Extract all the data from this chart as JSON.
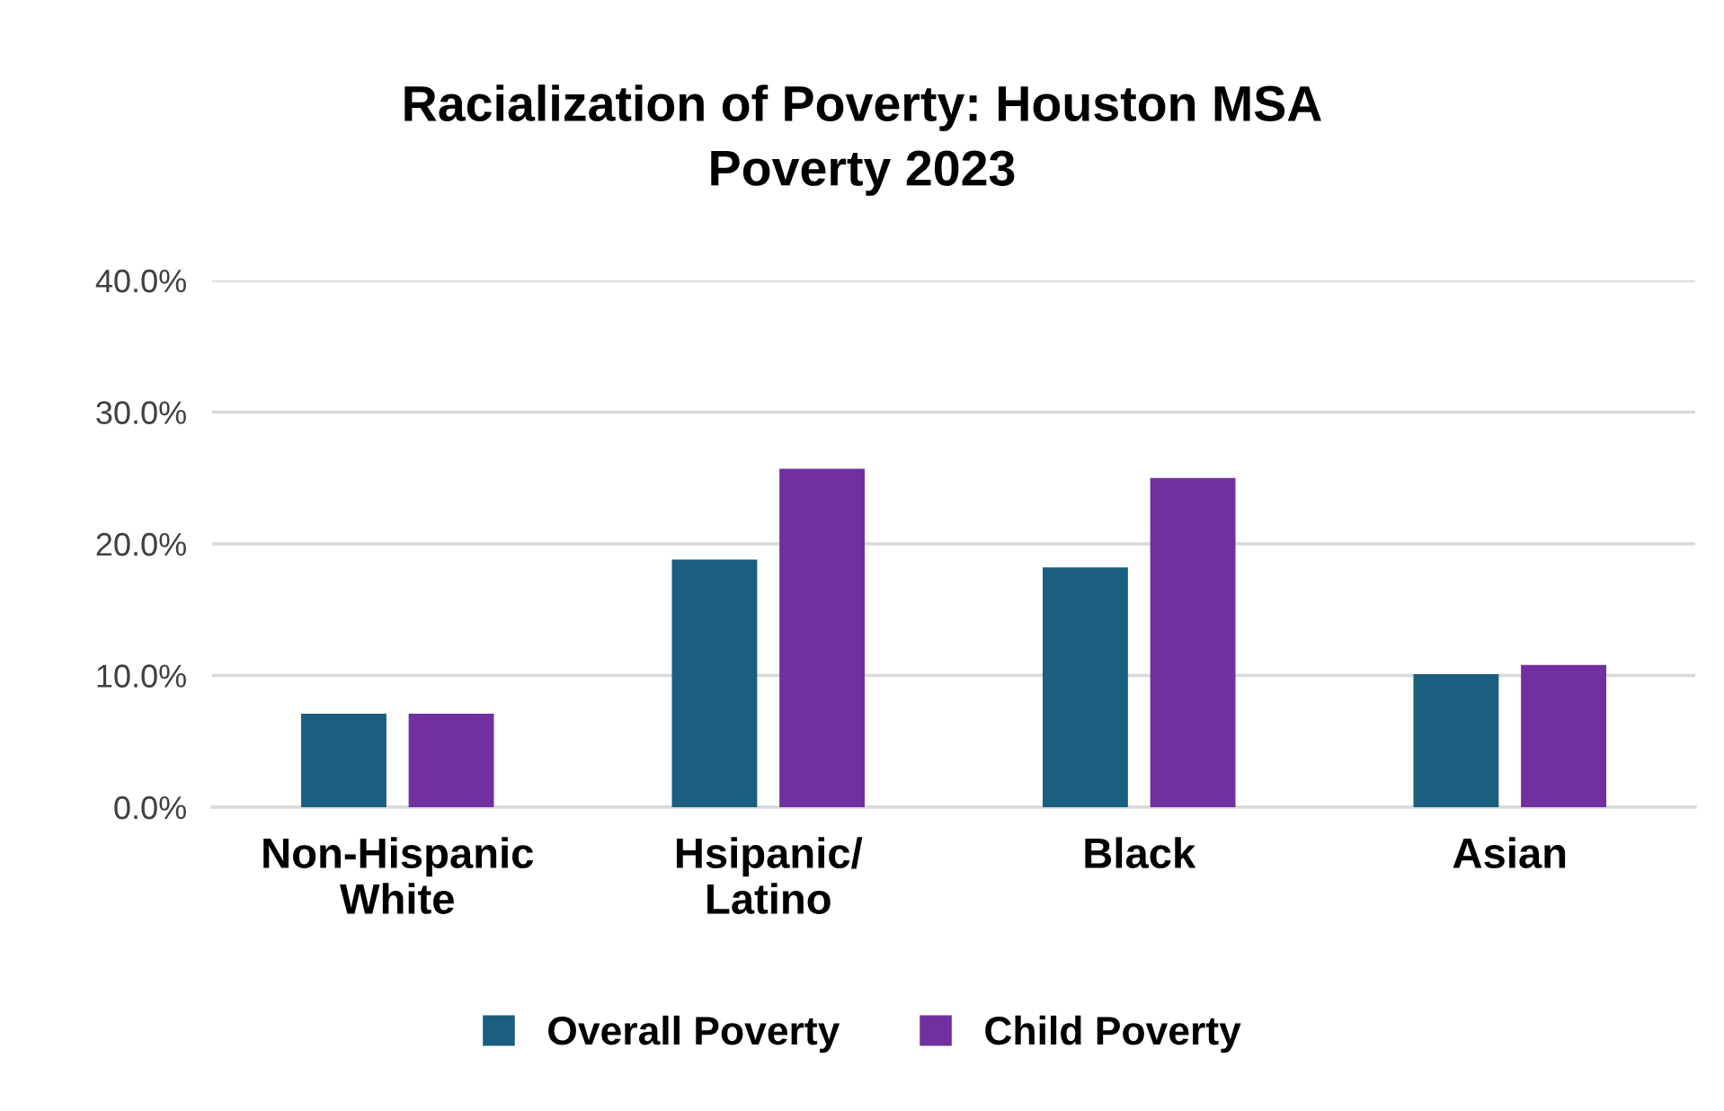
{
  "chart_data": {
    "type": "bar",
    "title": "Racialization of Poverty: Houston MSA\nPoverty 2023",
    "categories": [
      "Non-Hispanic\nWhite",
      "Hsipanic/\nLatino",
      "Black",
      "Asian"
    ],
    "series": [
      {
        "name": "Overall Poverty",
        "color": "#1b5e80",
        "values": [
          7.1,
          18.8,
          18.2,
          10.1
        ]
      },
      {
        "name": "Child Poverty",
        "color": "#7030a0",
        "values": [
          7.1,
          25.7,
          25.0,
          10.8
        ]
      }
    ],
    "ylim": [
      0,
      40
    ],
    "yticks": [
      {
        "value": 0,
        "label": "0.0%"
      },
      {
        "value": 10,
        "label": "10.0%"
      },
      {
        "value": 20,
        "label": "20.0%"
      },
      {
        "value": 30,
        "label": "30.0%"
      },
      {
        "value": 40,
        "label": "40.0%"
      }
    ],
    "grid": "y",
    "legend": "bottom"
  }
}
